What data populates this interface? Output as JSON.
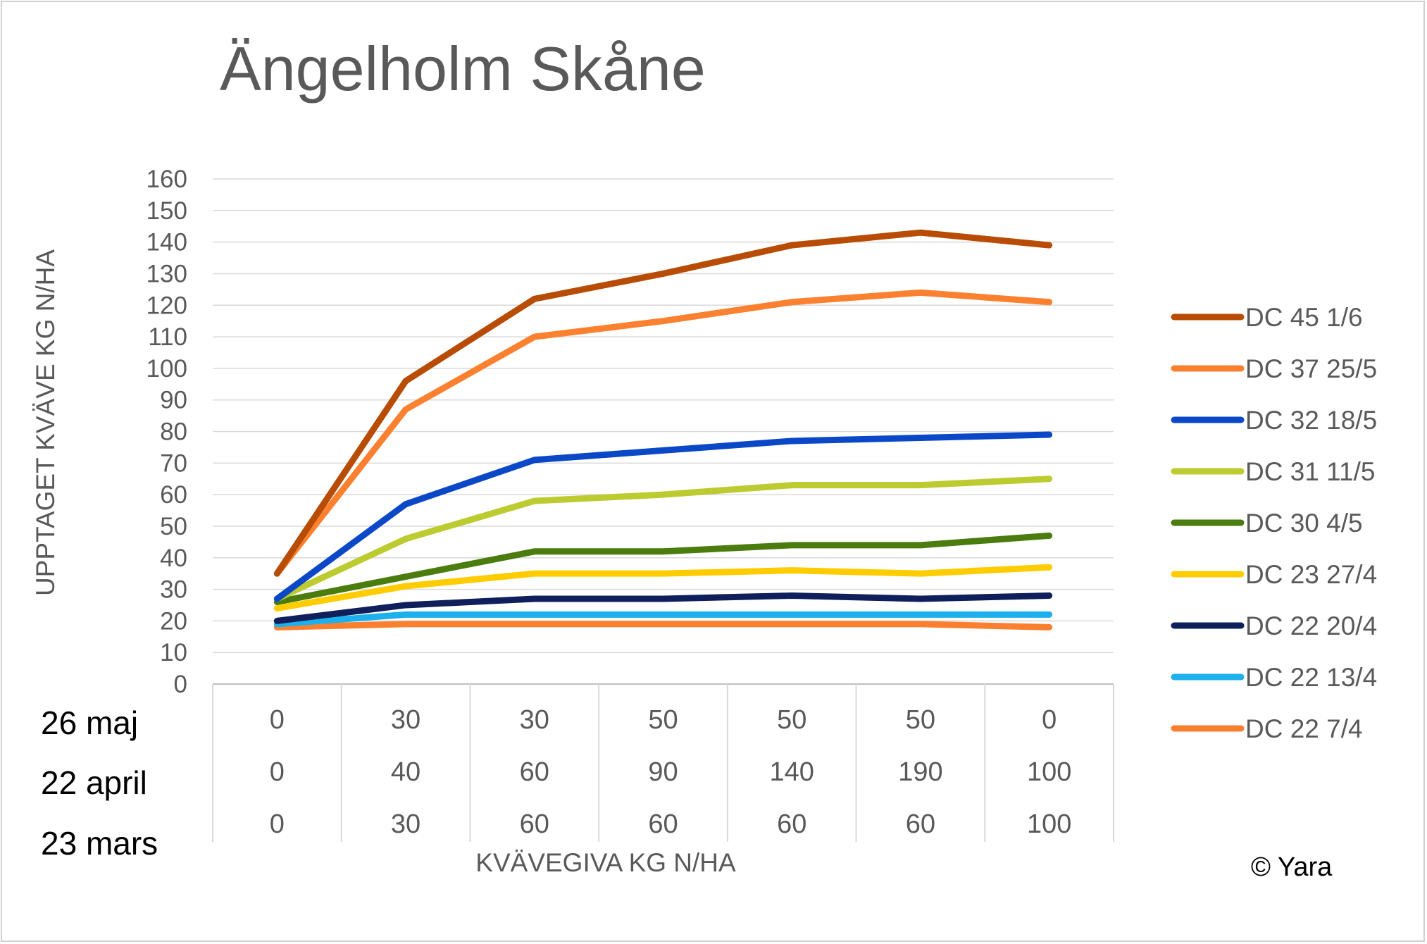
{
  "chart_data": {
    "type": "line",
    "title": "Ängelholm Skåne",
    "ylabel": "UPPTAGET KVÄVE KG N/HA",
    "xlabel": "KVÄVEGIVA  KG N/HA",
    "ylim": [
      0,
      160
    ],
    "yticks": [
      0,
      10,
      20,
      30,
      40,
      50,
      60,
      70,
      80,
      90,
      100,
      110,
      120,
      130,
      140,
      150,
      160
    ],
    "grid": true,
    "legend_position": "right",
    "category_rows": [
      {
        "label": "26 maj",
        "values": [
          "0",
          "30",
          "30",
          "50",
          "50",
          "50",
          "0"
        ]
      },
      {
        "label": "22 april",
        "values": [
          "0",
          "40",
          "60",
          "90",
          "140",
          "190",
          "100"
        ]
      },
      {
        "label": "23 mars",
        "values": [
          "0",
          "30",
          "60",
          "60",
          "60",
          "60",
          "100"
        ]
      }
    ],
    "series": [
      {
        "name": "DC 45 1/6",
        "color": "#b84c05",
        "values": [
          35,
          96,
          122,
          130,
          139,
          143,
          139
        ]
      },
      {
        "name": "DC 37 25/5",
        "color": "#fb8130",
        "values": [
          35,
          87,
          110,
          115,
          121,
          124,
          121
        ]
      },
      {
        "name": "DC 32 18/5",
        "color": "#0b48c8",
        "values": [
          27,
          57,
          71,
          74,
          77,
          78,
          79
        ]
      },
      {
        "name": "DC 31 11/5",
        "color": "#bccb30",
        "values": [
          27,
          46,
          58,
          60,
          63,
          63,
          65
        ]
      },
      {
        "name": "DC 30 4/5",
        "color": "#4a7c0e",
        "values": [
          26,
          34,
          42,
          42,
          44,
          44,
          47
        ]
      },
      {
        "name": "DC 23 27/4",
        "color": "#ffcc00",
        "values": [
          24,
          31,
          35,
          35,
          36,
          35,
          37
        ]
      },
      {
        "name": "DC 22 20/4",
        "color": "#0e1f5b",
        "values": [
          20,
          25,
          27,
          27,
          28,
          27,
          28
        ]
      },
      {
        "name": "DC 22 13/4",
        "color": "#1cb0ec",
        "values": [
          19,
          22,
          22,
          22,
          22,
          22,
          22
        ]
      },
      {
        "name": "DC 22 7/4",
        "color": "#fa8030",
        "values": [
          18,
          19,
          19,
          19,
          19,
          19,
          18
        ]
      }
    ]
  },
  "credit": "© Yara"
}
